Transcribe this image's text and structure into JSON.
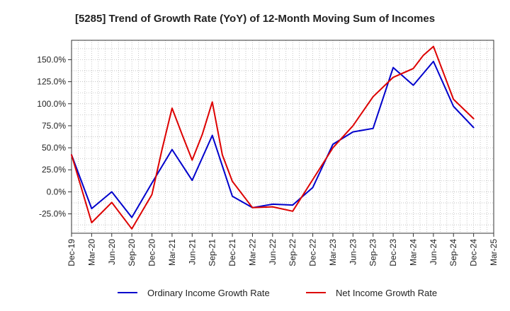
{
  "chart_data": {
    "type": "line",
    "title": "[5285]  Trend of Growth Rate (YoY) of 12-Month Moving Sum of Incomes",
    "xlabel": "",
    "ylabel": "",
    "ylim": [
      -47,
      172
    ],
    "y_ticks": [
      150,
      125,
      100,
      75,
      50,
      25,
      0,
      -25
    ],
    "y_tick_labels": [
      "150.0%",
      "125.0%",
      "100.0%",
      "75.0%",
      "50.0%",
      "25.0%",
      "0.0%",
      "-25.0%"
    ],
    "x_tick_labels": [
      "Dec-19",
      "Mar-20",
      "Jun-20",
      "Sep-20",
      "Dec-20",
      "Mar-21",
      "Jun-21",
      "Sep-21",
      "Dec-21",
      "Mar-22",
      "Jun-22",
      "Sep-22",
      "Dec-22",
      "Mar-23",
      "Jun-23",
      "Sep-23",
      "Dec-23",
      "Mar-24",
      "Jun-24",
      "Sep-24",
      "Dec-24",
      "Mar-25"
    ],
    "x_month_span": [
      0,
      63
    ],
    "grid": true,
    "legend_position": "bottom",
    "series": [
      {
        "name": "Ordinary Income Growth Rate",
        "color": "#0000cc",
        "x_months": [
          0,
          3,
          6,
          9,
          12,
          15,
          18,
          21,
          24,
          27,
          30,
          33,
          36,
          39,
          42,
          45,
          48,
          51,
          54,
          57,
          60
        ],
        "values": [
          42,
          -19,
          0,
          -29,
          10,
          48,
          13,
          64,
          -5,
          -18,
          -14,
          -15,
          5,
          54,
          68,
          72,
          141,
          121,
          148,
          97,
          73
        ]
      },
      {
        "name": "Net Income Growth Rate",
        "color": "#dd0000",
        "x_months": [
          0,
          3,
          6,
          9,
          12,
          13.5,
          15,
          16.5,
          18,
          19.5,
          21,
          22.5,
          24,
          27,
          30,
          33,
          36,
          39,
          42,
          45,
          48,
          51,
          52.5,
          54,
          57,
          60
        ],
        "values": [
          42,
          -35,
          -12,
          -42,
          -3,
          48,
          95,
          65,
          36,
          65,
          102,
          42,
          12,
          -18,
          -17,
          -22,
          14,
          50,
          75,
          108,
          130,
          140,
          155,
          165,
          105,
          83
        ]
      }
    ]
  }
}
